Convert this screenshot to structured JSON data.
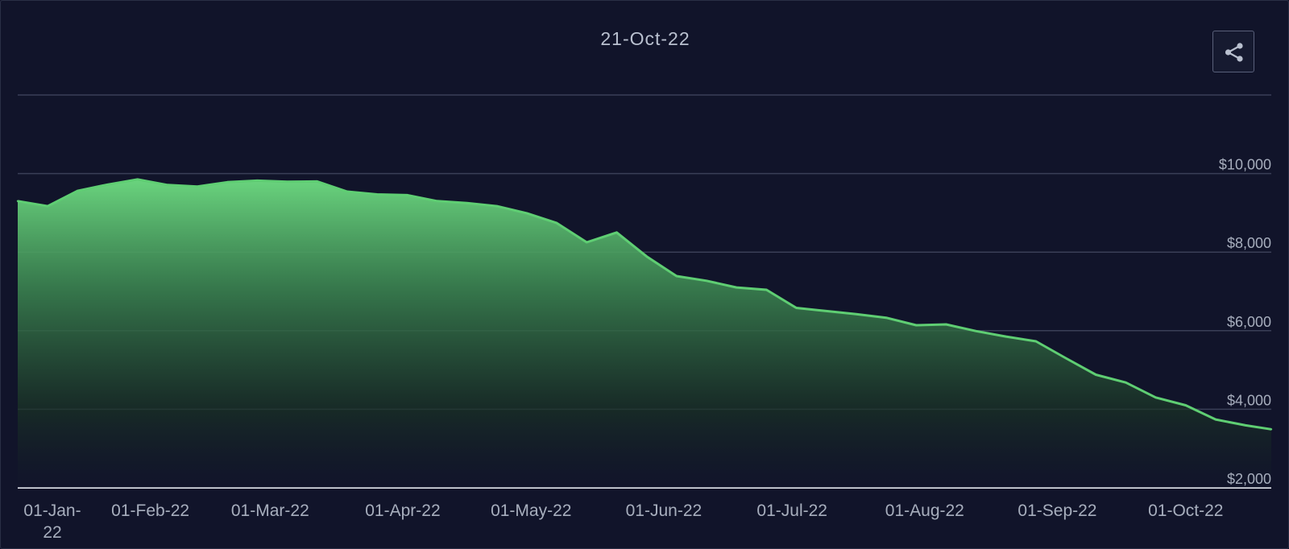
{
  "chart_data": {
    "type": "area",
    "title": "21-Oct-22",
    "xlabel": "",
    "ylabel": "",
    "x_ticks": [
      "01-Jan-22",
      "01-Feb-22",
      "01-Mar-22",
      "01-Apr-22",
      "01-May-22",
      "01-Jun-22",
      "01-Jul-22",
      "01-Aug-22",
      "01-Sep-22",
      "01-Oct-22"
    ],
    "y_ticks": [
      "$2,000",
      "$4,000",
      "$6,000",
      "$8,000",
      "$10,000"
    ],
    "ylim": [
      2000,
      12000
    ],
    "xlim": [
      "2022-01-01",
      "2022-10-21"
    ],
    "grid": true,
    "colors": {
      "line": "#5fce73",
      "fill_top": "#6ad47e",
      "background": "#11142a",
      "grid": "#3a3f57"
    },
    "series": [
      {
        "x": [
          "2022-01-01",
          "2022-01-08",
          "2022-01-15",
          "2022-01-22",
          "2022-01-29",
          "2022-02-05",
          "2022-02-12",
          "2022-02-19",
          "2022-02-26",
          "2022-03-05",
          "2022-03-12",
          "2022-03-19",
          "2022-03-26",
          "2022-04-02",
          "2022-04-09",
          "2022-04-16",
          "2022-04-23",
          "2022-04-30",
          "2022-05-07",
          "2022-05-14",
          "2022-05-21",
          "2022-05-28",
          "2022-06-04",
          "2022-06-11",
          "2022-06-18",
          "2022-06-25",
          "2022-07-02",
          "2022-07-09",
          "2022-07-16",
          "2022-07-23",
          "2022-07-30",
          "2022-08-06",
          "2022-08-13",
          "2022-08-20",
          "2022-08-27",
          "2022-09-03",
          "2022-09-10",
          "2022-09-17",
          "2022-09-24",
          "2022-10-01",
          "2022-10-08",
          "2022-10-15",
          "2022-10-21"
        ],
        "values": [
          9300,
          9170,
          9560,
          9720,
          9850,
          9710,
          9670,
          9780,
          9820,
          9790,
          9800,
          9540,
          9470,
          9450,
          9300,
          9250,
          9170,
          8990,
          8740,
          8250,
          8500,
          7890,
          7390,
          7270,
          7100,
          7040,
          6580,
          6500,
          6420,
          6330,
          6140,
          6160,
          5990,
          5850,
          5730,
          5300,
          4880,
          4680,
          4300,
          4100,
          3740,
          3590,
          3490
        ]
      }
    ]
  },
  "share_button": {
    "icon": "share-icon",
    "color": "#b9c0cf"
  }
}
